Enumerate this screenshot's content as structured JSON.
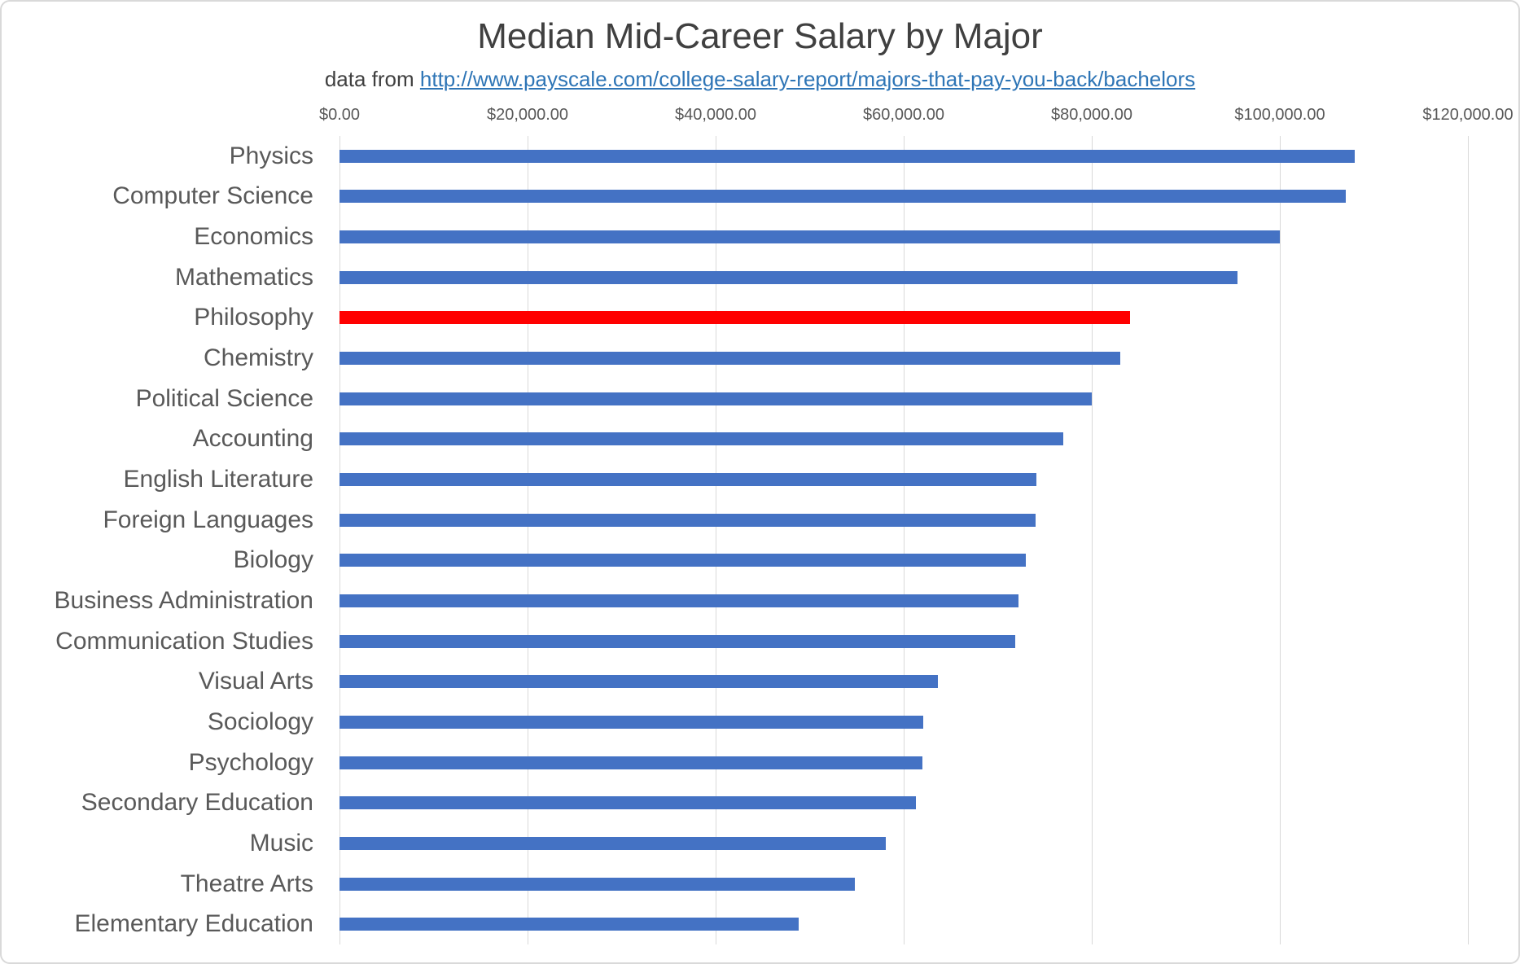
{
  "chart_data": {
    "type": "bar",
    "orientation": "horizontal",
    "title": "Median Mid-Career Salary by Major",
    "subtitle_prefix": "data from ",
    "subtitle_link": "http://www.payscale.com/college-salary-report/majors-that-pay-you-back/bachelors",
    "categories": [
      "Physics",
      "Computer Science",
      "Economics",
      "Mathematics",
      "Philosophy",
      "Chemistry",
      "Political Science",
      "Accounting",
      "English Literature",
      "Foreign Languages",
      "Biology",
      "Business Administration",
      "Communication Studies",
      "Visual Arts",
      "Sociology",
      "Psychology",
      "Secondary Education",
      "Music",
      "Theatre Arts",
      "Elementary Education"
    ],
    "values": [
      108000,
      107000,
      100000,
      95500,
      84100,
      83000,
      80000,
      77000,
      74100,
      74000,
      73000,
      72200,
      71900,
      63600,
      62100,
      62000,
      61300,
      58100,
      54800,
      48800
    ],
    "highlight_category": "Philosophy",
    "xlabel": "",
    "ylabel": "",
    "xlim": [
      0,
      120000
    ],
    "x_tick_labels": [
      "$0.00",
      "$20,000.00",
      "$40,000.00",
      "$60,000.00",
      "$80,000.00",
      "$100,000.00",
      "$120,000.00"
    ],
    "x_tick_values": [
      0,
      20000,
      40000,
      60000,
      80000,
      100000,
      120000
    ],
    "gridlines": "vertical",
    "legend": false,
    "colors": {
      "bar": "#4472C4",
      "highlight": "#FF0000",
      "gridline": "#D9D9D9",
      "axis_text": "#595959",
      "title_text": "#404040",
      "link": "#2E75B6",
      "border": "#D9D9D9"
    }
  }
}
